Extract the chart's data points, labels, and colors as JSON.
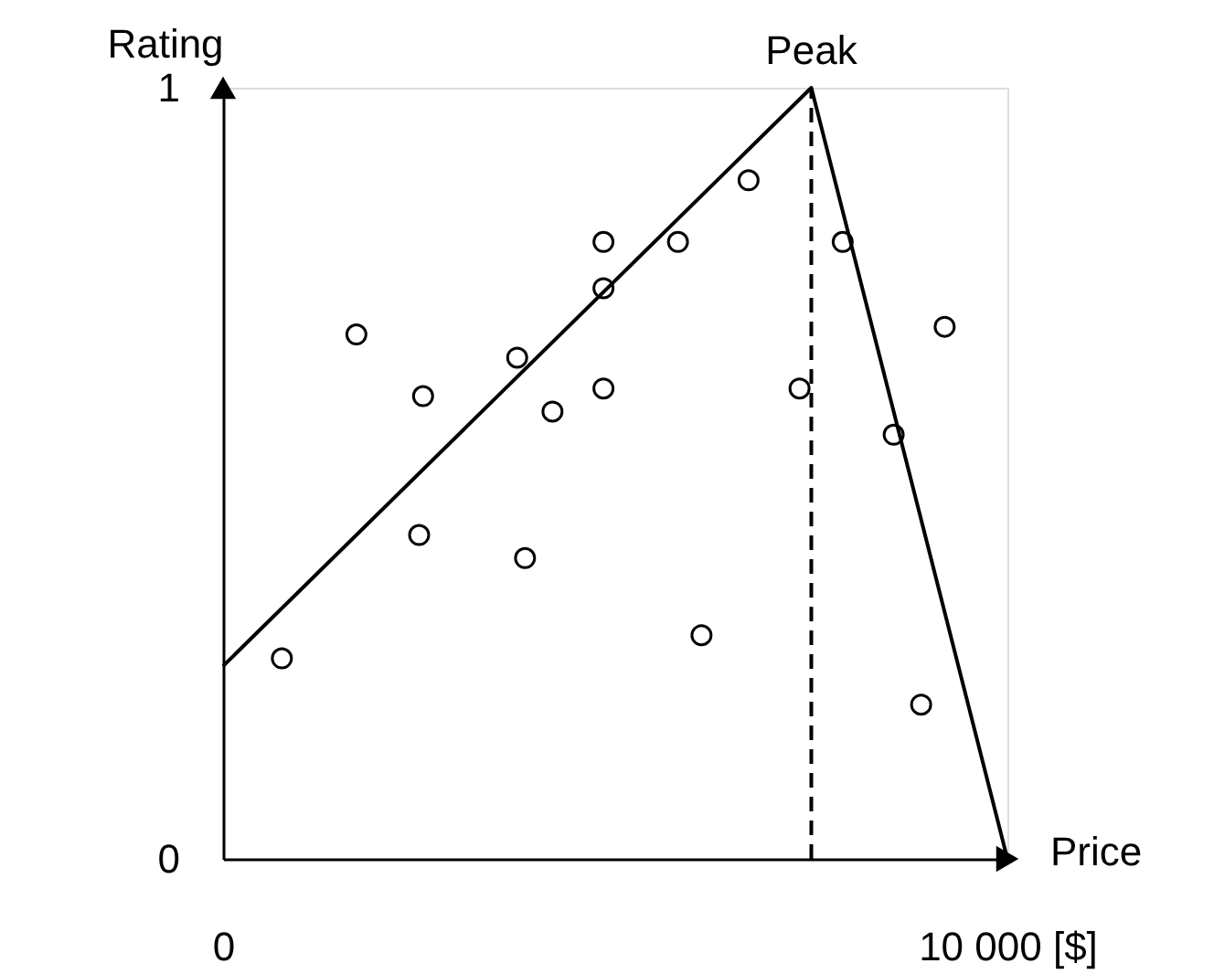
{
  "chart_data": {
    "type": "scatter",
    "xlabel": "Price",
    "ylabel": "Rating",
    "xlim": [
      0,
      10000
    ],
    "ylim": [
      0,
      1
    ],
    "xticks": [
      0,
      {
        "value": 10000,
        "label": "10 000 [$]"
      }
    ],
    "yticks": [
      0,
      1
    ],
    "marker": "circle",
    "annotations": [
      {
        "text": "Peak",
        "x": 7500,
        "y": 1
      }
    ],
    "ref_lines": [
      {
        "axis": "x",
        "value": 7500,
        "label": null,
        "color": "#000000",
        "line_style": "dashed"
      }
    ],
    "series": [
      {
        "color": "#000000",
        "x": [
          750,
          1700,
          2550,
          2500,
          3750,
          3850,
          4200,
          4850,
          4850,
          4850,
          5800,
          6100,
          6700,
          7350,
          7900,
          8550,
          9200,
          8900
        ],
        "values": [
          0.26,
          0.68,
          0.6,
          0.42,
          0.65,
          0.39,
          0.58,
          0.8,
          0.74,
          0.61,
          0.8,
          0.29,
          0.88,
          0.61,
          0.8,
          0.55,
          0.69,
          0.2
        ]
      },
      {
        "type": "line",
        "color": "#000000",
        "marker": "none",
        "line_style": "solid",
        "x": [
          0,
          7500,
          10000
        ],
        "values": [
          0.25,
          1,
          0
        ]
      }
    ]
  }
}
